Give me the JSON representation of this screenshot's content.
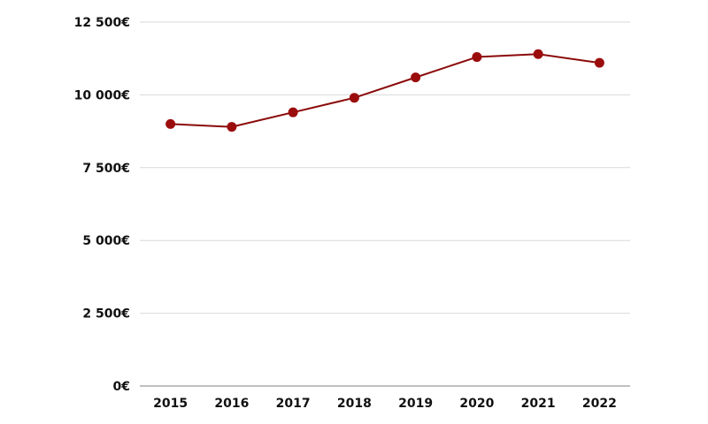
{
  "chart_data": {
    "type": "line",
    "categories": [
      "2015",
      "2016",
      "2017",
      "2018",
      "2019",
      "2020",
      "2021",
      "2022"
    ],
    "series": [
      {
        "values": [
          9000,
          8900,
          9400,
          9900,
          10600,
          11300,
          11400,
          11100
        ]
      }
    ],
    "yticks": [
      0,
      2500,
      5000,
      7500,
      10000,
      12500
    ],
    "ytick_labels": [
      "0€",
      "2 500€",
      "5 000€",
      "7 500€",
      "10 000€",
      "12 500€"
    ],
    "ylim": [
      0,
      12500
    ],
    "grid": true,
    "line_color": "#8b0a0a",
    "marker_color": "#9b0d0d"
  }
}
